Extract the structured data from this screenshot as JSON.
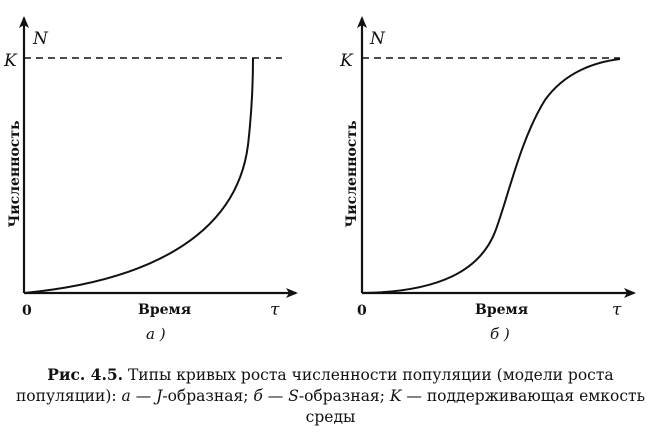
{
  "panels": [
    {
      "id": "a",
      "y_axis_symbol": "N",
      "x_axis_symbol": "τ",
      "capacity_label": "K",
      "origin_label": "0",
      "y_axis_label": "Численность",
      "x_axis_label": "Время",
      "sublabel": "а )",
      "curve_type": "J"
    },
    {
      "id": "b",
      "y_axis_symbol": "N",
      "x_axis_symbol": "τ",
      "capacity_label": "K",
      "origin_label": "0",
      "y_axis_label": "Численность",
      "x_axis_label": "Время",
      "sublabel": "б )",
      "curve_type": "S"
    }
  ],
  "caption": {
    "fig_number": "Рис. 4.5.",
    "text_1": " Типы кривых роста численности популяции (модели роста популяции): ",
    "a_letter": "а",
    "text_2": " — ",
    "j_letter": "J",
    "text_3": "-образная; ",
    "b_letter": "б",
    "text_4": " — ",
    "s_letter": "S",
    "text_5": "-образная; ",
    "k_letter": "K",
    "text_6": " — поддерживающая емкость среды"
  }
}
